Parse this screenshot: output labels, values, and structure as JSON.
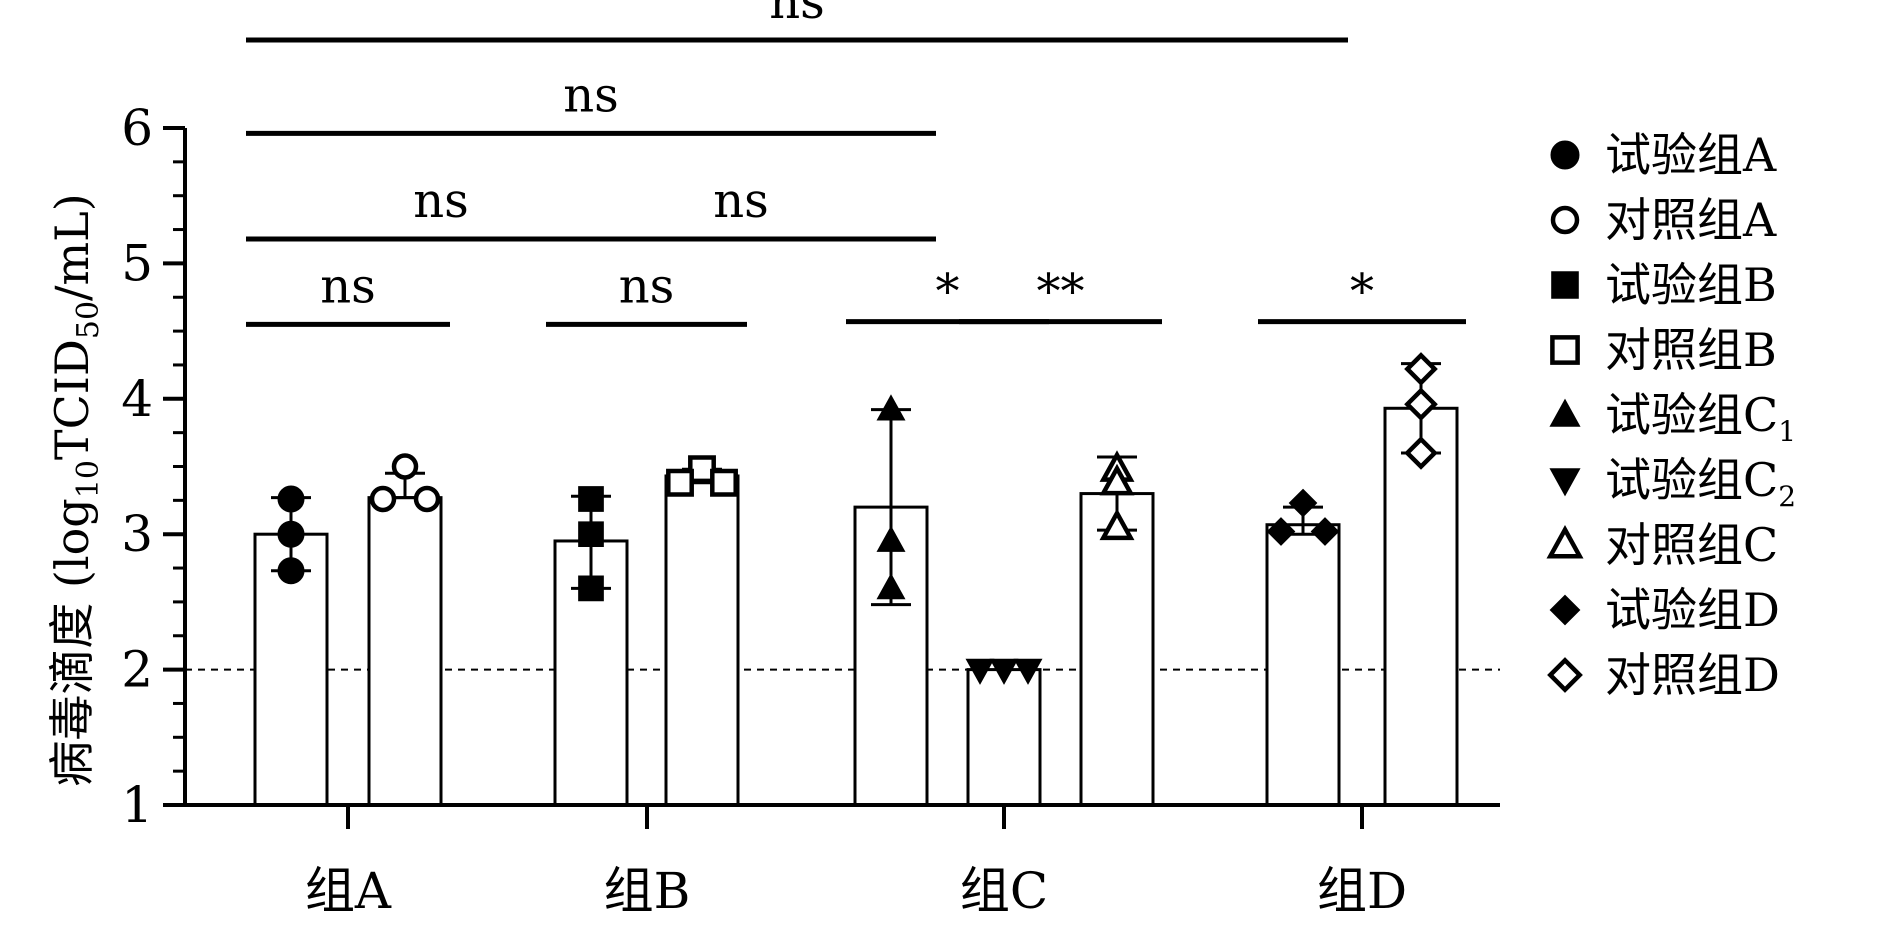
{
  "chart_data": {
    "type": "bar",
    "title": "",
    "xlabel": "",
    "ylabel": {
      "pre": "病毒滴度 (log",
      "sub1": "10",
      "mid": "TCID",
      "sub2": "50",
      "post": "/mL)"
    },
    "ylim": [
      1,
      6
    ],
    "yticks": [
      "1",
      "2",
      "3",
      "4",
      "5",
      "6"
    ],
    "detection_limit": 2,
    "groups": [
      {
        "label": "组A",
        "bars": [
          "试验组A",
          "对照组A"
        ]
      },
      {
        "label": "组B",
        "bars": [
          "试验组B",
          "对照组B"
        ]
      },
      {
        "label": "组C",
        "bars": [
          "试验组C1",
          "试验组C2",
          "对照组C"
        ]
      },
      {
        "label": "组D",
        "bars": [
          "试验组D",
          "对照组D"
        ]
      }
    ],
    "series": [
      {
        "key": "试验组A",
        "name": "试验组A",
        "sub": "",
        "marker": "circle",
        "filled": true,
        "mean": 3.0,
        "err": [
          2.73,
          3.27
        ],
        "points": [
          3.26,
          3.0,
          2.73
        ]
      },
      {
        "key": "对照组A",
        "name": "对照组A",
        "sub": "",
        "marker": "circle",
        "filled": false,
        "mean": 3.27,
        "err": [
          3.27,
          3.45
        ],
        "points": [
          3.5,
          3.26,
          3.26
        ]
      },
      {
        "key": "试验组B",
        "name": "试验组B",
        "sub": "",
        "marker": "square",
        "filled": true,
        "mean": 2.95,
        "err": [
          2.6,
          3.28
        ],
        "points": [
          3.26,
          3.0,
          2.6
        ]
      },
      {
        "key": "对照组B",
        "name": "对照组B",
        "sub": "",
        "marker": "square",
        "filled": false,
        "mean": 3.43,
        "err": [
          3.38,
          3.48
        ],
        "points": [
          3.48,
          3.38,
          3.38
        ]
      },
      {
        "key": "试验组C1",
        "name": "试验组C",
        "sub": "1",
        "marker": "triangle-up",
        "filled": true,
        "mean": 3.2,
        "err": [
          2.48,
          3.92
        ],
        "points": [
          3.92,
          2.95,
          2.6
        ]
      },
      {
        "key": "试验组C2",
        "name": "试验组C",
        "sub": "2",
        "marker": "triangle-down",
        "filled": true,
        "mean": 2.0,
        "err": [
          2.0,
          2.0
        ],
        "points": [
          2.0,
          2.0,
          2.0
        ]
      },
      {
        "key": "对照组C",
        "name": "对照组C",
        "sub": "",
        "marker": "triangle-up",
        "filled": false,
        "mean": 3.3,
        "err": [
          3.03,
          3.57
        ],
        "points": [
          3.48,
          3.38,
          3.05
        ]
      },
      {
        "key": "试验组D",
        "name": "试验组D",
        "sub": "",
        "marker": "diamond",
        "filled": true,
        "mean": 3.07,
        "err": [
          3.0,
          3.2
        ],
        "points": [
          3.23,
          3.02,
          3.02
        ]
      },
      {
        "key": "对照组D",
        "name": "对照组D",
        "sub": "",
        "marker": "diamond",
        "filled": false,
        "mean": 3.93,
        "err": [
          3.6,
          4.26
        ],
        "points": [
          4.22,
          3.96,
          3.6
        ]
      }
    ],
    "annotations": [
      {
        "label": "ns",
        "from": "试验组A",
        "to": "试验组D",
        "y": 6.65
      },
      {
        "label": "ns",
        "from": "试验组A",
        "to": "试验组C1",
        "y": 5.96
      },
      {
        "label": "ns",
        "from": "试验组A",
        "to": "试验组B",
        "y": 5.18
      },
      {
        "label": "ns",
        "from": "试验组B",
        "to": "试验组C1",
        "y": 5.18
      },
      {
        "label": "ns",
        "from": "试验组A",
        "to": "对照组A",
        "y": 4.55
      },
      {
        "label": "ns",
        "from": "试验组B",
        "to": "对照组B",
        "y": 4.55
      },
      {
        "label": "*",
        "from": "试验组C1",
        "to": "试验组C2",
        "y": 4.57
      },
      {
        "label": "**",
        "from": "试验组C2",
        "to": "对照组C",
        "y": 4.57
      },
      {
        "label": "*",
        "from": "试验组D",
        "to": "对照组D",
        "y": 4.57
      }
    ],
    "legend": {
      "position": "right"
    }
  }
}
